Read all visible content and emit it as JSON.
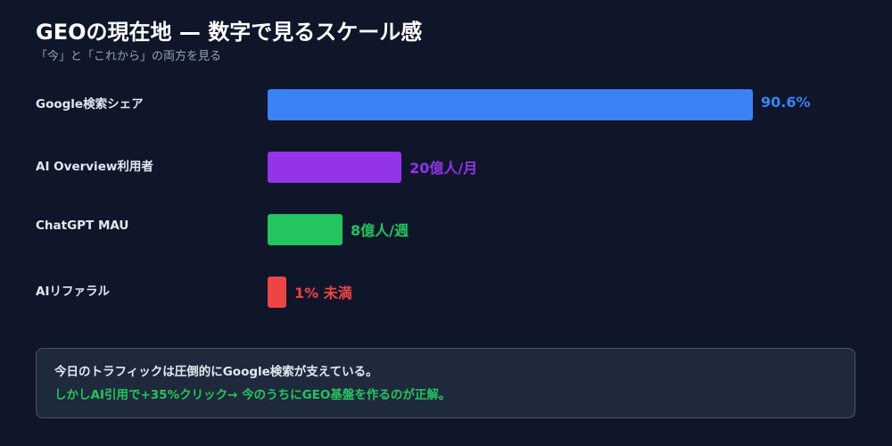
{
  "header": {
    "title": "GEOの現在地 — 数字で見るスケール感",
    "subtitle": "「今」と「これから」の両方を見る"
  },
  "chart_data": {
    "type": "bar",
    "orientation": "horizontal",
    "categories": [
      "Google検索シェア",
      "AI Overview利用者",
      "ChatGPT MAU",
      "AIリファラル"
    ],
    "values": [
      90.6,
      25,
      14,
      3.5
    ],
    "value_labels": [
      "90.6%",
      "20億人/月",
      "8億人/週",
      "1% 未満"
    ],
    "colors": [
      "#3b82f6",
      "#9333ea",
      "#22c55e",
      "#ef4444"
    ],
    "xlim": [
      0,
      90.6
    ],
    "title": "",
    "xlabel": "",
    "ylabel": "",
    "grid": false,
    "legend": "none"
  },
  "note": {
    "line1": "今日のトラフィックは圧倒的にGoogle検索が支えている。",
    "line2": "しかしAI引用で+35%クリック→ 今のうちにGEO基盤を作るのが正解。",
    "line2_color": "#22c55e"
  }
}
